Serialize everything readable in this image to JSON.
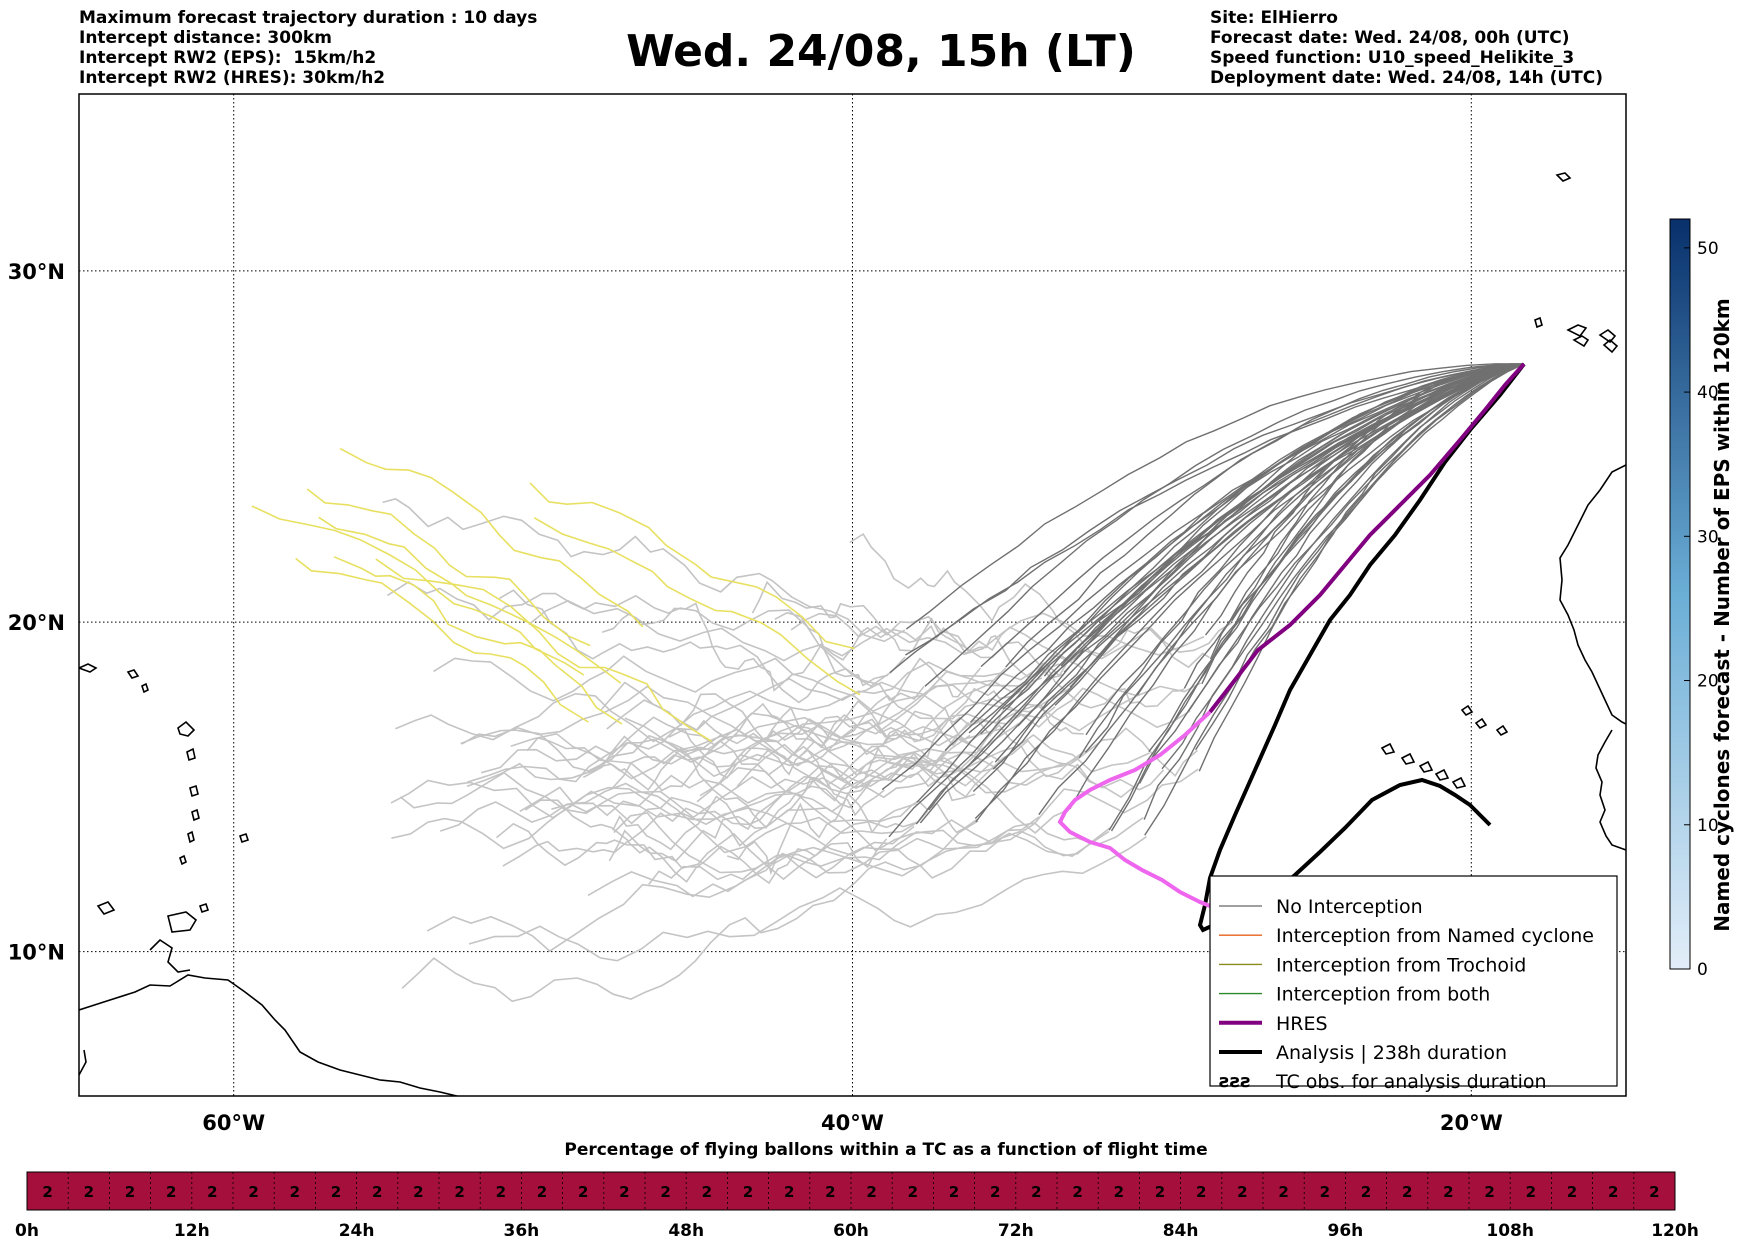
{
  "header": {
    "left_lines": [
      "Maximum forecast trajectory duration : 10 days",
      "Intercept distance: 300km",
      "Intercept RW2 (EPS):  15km/h2",
      "Intercept RW2 (HRES): 30km/h2"
    ],
    "title": "Wed. 24/08, 15h (LT)",
    "right_lines": [
      "Site: ElHierro",
      "Forecast date: Wed. 24/08, 00h (UTC)",
      "Speed function: U10_speed_Helikite_3",
      "Deployment date: Wed. 24/08, 14h (UTC)"
    ]
  },
  "map": {
    "lat_labels": [
      "30°N",
      "20°N",
      "10°N"
    ],
    "lon_labels": [
      "60°W",
      "40°W",
      "20°W"
    ],
    "lat_range": [
      5.5,
      34.7
    ],
    "lon_range": [
      -65,
      -15
    ]
  },
  "legend": {
    "items": [
      {
        "label": "No Interception",
        "color": "#808080"
      },
      {
        "label": "Interception from Named cyclone",
        "color": "#e8601c"
      },
      {
        "label": "Interception from Trochoid",
        "color": "#8a8a20"
      },
      {
        "label": "Interception from both",
        "color": "#2a8a2a"
      },
      {
        "label": "HRES",
        "color": "#800080"
      },
      {
        "label": "Analysis | 238h duration",
        "color": "#000000"
      },
      {
        "label": "TC obs. for analysis duration",
        "color": "#000000",
        "icon": "cyclone-symbol-icon"
      }
    ]
  },
  "colorbar": {
    "label": "Named cyclones forecast - Number of EPS within 120km",
    "ticks": [
      "0",
      "10",
      "20",
      "30",
      "40",
      "50"
    ],
    "max": 52,
    "color_low": "#e3eef9",
    "color_high": "#08306b"
  },
  "bottom_bar": {
    "title": "Percentage of flying ballons within a TC as a function of flight time",
    "cell_value": "2",
    "cell_count": 40,
    "color": "#a50f3c",
    "time_labels": [
      "0h",
      "12h",
      "24h",
      "36h",
      "48h",
      "60h",
      "72h",
      "84h",
      "96h",
      "108h",
      "120h"
    ]
  }
}
